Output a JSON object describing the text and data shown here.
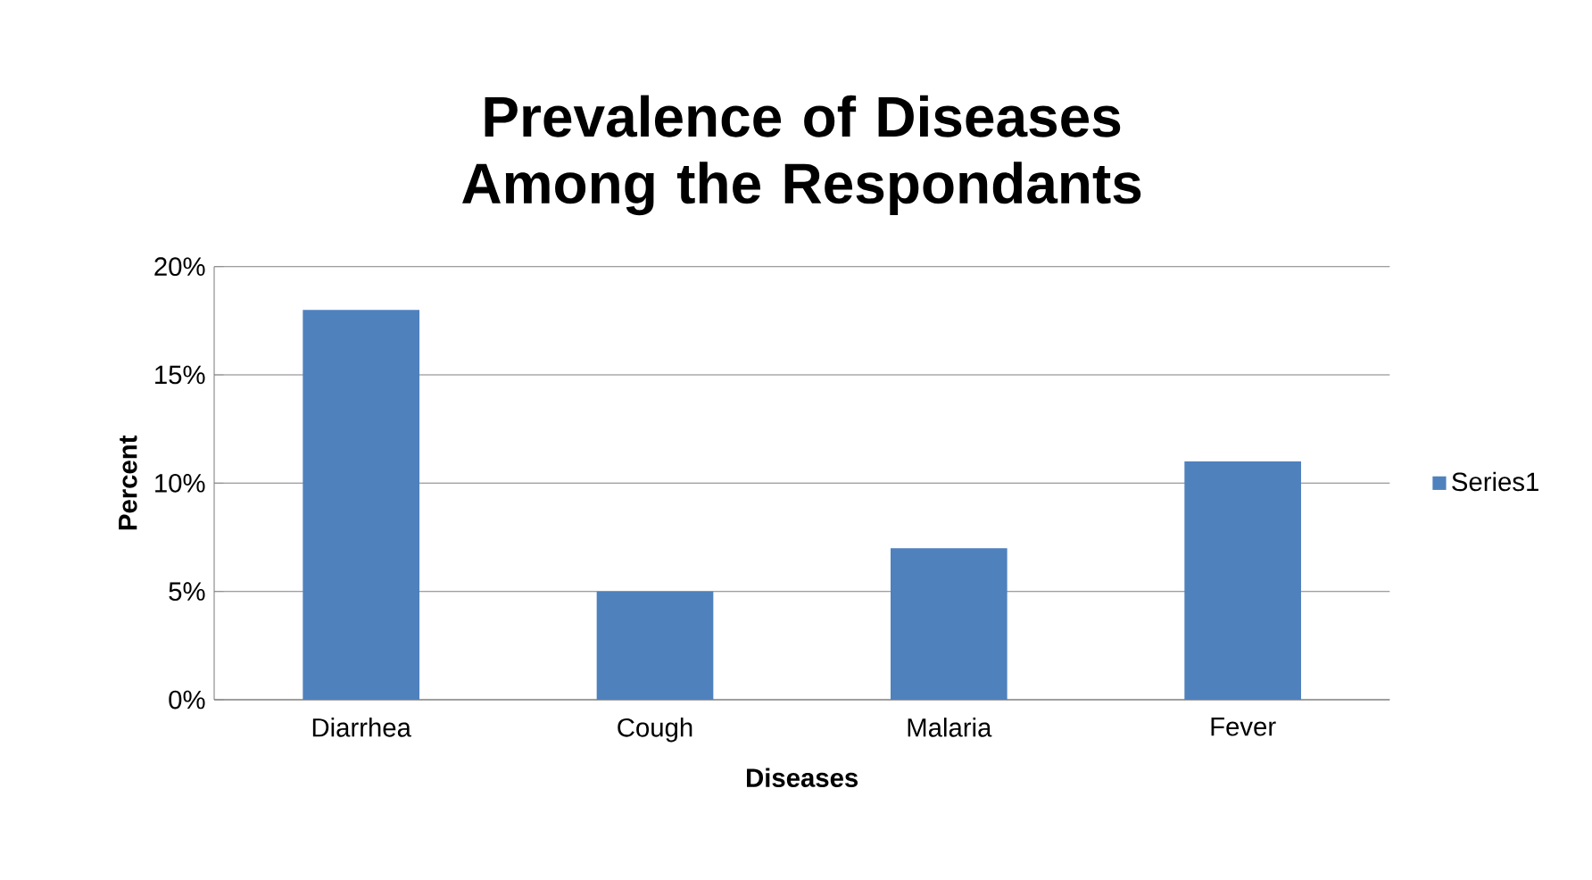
{
  "chart_data": {
    "type": "bar",
    "title": "Prevalence of Diseases Among the Respondants",
    "xlabel": "Diseases",
    "ylabel": "Percent",
    "categories": [
      "Diarrhea",
      "Cough",
      "Malaria",
      "Fever"
    ],
    "series": [
      {
        "name": "Series1",
        "color": "#4f81bd",
        "values": [
          18,
          5,
          7,
          11
        ]
      }
    ],
    "ylim": [
      0,
      20
    ],
    "yticks": [
      {
        "value": 0,
        "label": "0%"
      },
      {
        "value": 5,
        "label": "5%"
      },
      {
        "value": 10,
        "label": "10%"
      },
      {
        "value": 15,
        "label": "15%"
      },
      {
        "value": 20,
        "label": "20%"
      }
    ],
    "grid": "y",
    "legend": "right"
  }
}
